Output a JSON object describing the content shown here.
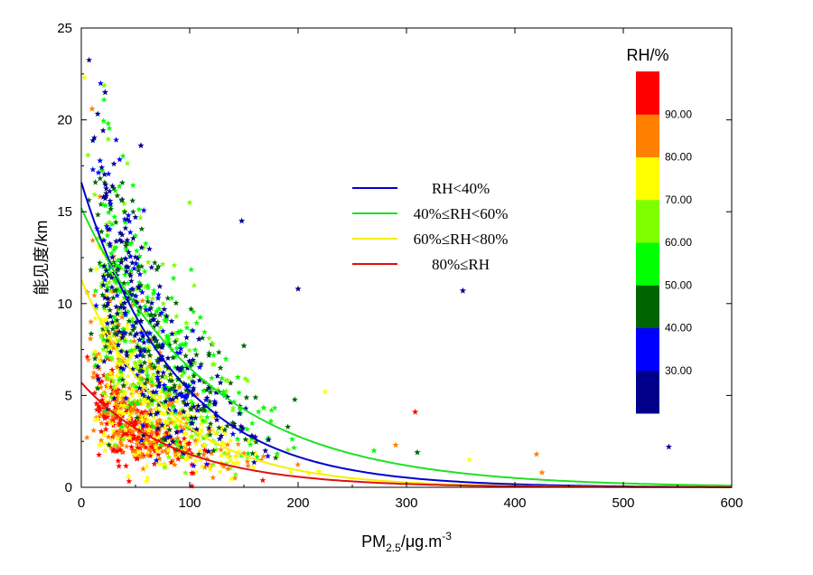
{
  "chart_data": {
    "type": "scatter",
    "title": "",
    "xlabel": {
      "prefix": "PM",
      "sub": "2.5",
      "mid": "/μg.m",
      "sup": "-3"
    },
    "ylabel": "能见度/km",
    "xlim": [
      0,
      600
    ],
    "ylim": [
      0,
      25
    ],
    "xticks": [
      0,
      100,
      200,
      300,
      400,
      500,
      600
    ],
    "yticks": [
      0,
      5,
      10,
      15,
      20,
      25
    ],
    "marker": "star",
    "series": [
      {
        "name": "RH<40%",
        "color": "#0000cd",
        "fit": {
          "a": 16.6,
          "b": 0.0115
        }
      },
      {
        "name": "40%≤RH<60%",
        "color": "#22e022",
        "fit": {
          "a": 15.2,
          "b": 0.0085
        }
      },
      {
        "name": "60%≤RH<80%",
        "color": "#f4f000",
        "fit": {
          "a": 11.3,
          "b": 0.0125
        }
      },
      {
        "name": "80%≤RH",
        "color": "#e01010",
        "fit": {
          "a": 5.7,
          "b": 0.0115
        }
      }
    ],
    "notable_points": [
      {
        "x": 22,
        "y": 21.5,
        "c": "#00008b"
      },
      {
        "x": 3,
        "y": 22.3,
        "c": "#ffff00"
      },
      {
        "x": 10,
        "y": 20.6,
        "c": "#ff8000"
      },
      {
        "x": 55,
        "y": 18.6,
        "c": "#00008b"
      },
      {
        "x": 148,
        "y": 14.5,
        "c": "#00008b"
      },
      {
        "x": 200,
        "y": 10.8,
        "c": "#00008b"
      },
      {
        "x": 352,
        "y": 10.7,
        "c": "#00008b"
      },
      {
        "x": 308,
        "y": 4.1,
        "c": "#ff0000"
      },
      {
        "x": 542,
        "y": 2.2,
        "c": "#00008b"
      },
      {
        "x": 420,
        "y": 1.8,
        "c": "#ff8000"
      },
      {
        "x": 425,
        "y": 0.8,
        "c": "#ff8000"
      },
      {
        "x": 225,
        "y": 5.2,
        "c": "#ffff00"
      },
      {
        "x": 100,
        "y": 15.5,
        "c": "#7fff00"
      },
      {
        "x": 310,
        "y": 1.9,
        "c": "#006400"
      },
      {
        "x": 358,
        "y": 1.5,
        "c": "#ffff00"
      },
      {
        "x": 290,
        "y": 2.3,
        "c": "#ff8000"
      },
      {
        "x": 270,
        "y": 2.0,
        "c": "#00ff00"
      },
      {
        "x": 150,
        "y": 7.7,
        "c": "#006400"
      }
    ],
    "colorbar": {
      "title": "RH/%",
      "labels": [
        "30.00",
        "40.00",
        "50.00",
        "60.00",
        "70.00",
        "80.00",
        "90.00"
      ],
      "bands_bottom_to_top": [
        "#00008b",
        "#0000ff",
        "#006400",
        "#00ff00",
        "#7fff00",
        "#ffff00",
        "#ff8000",
        "#ff0000"
      ]
    }
  }
}
